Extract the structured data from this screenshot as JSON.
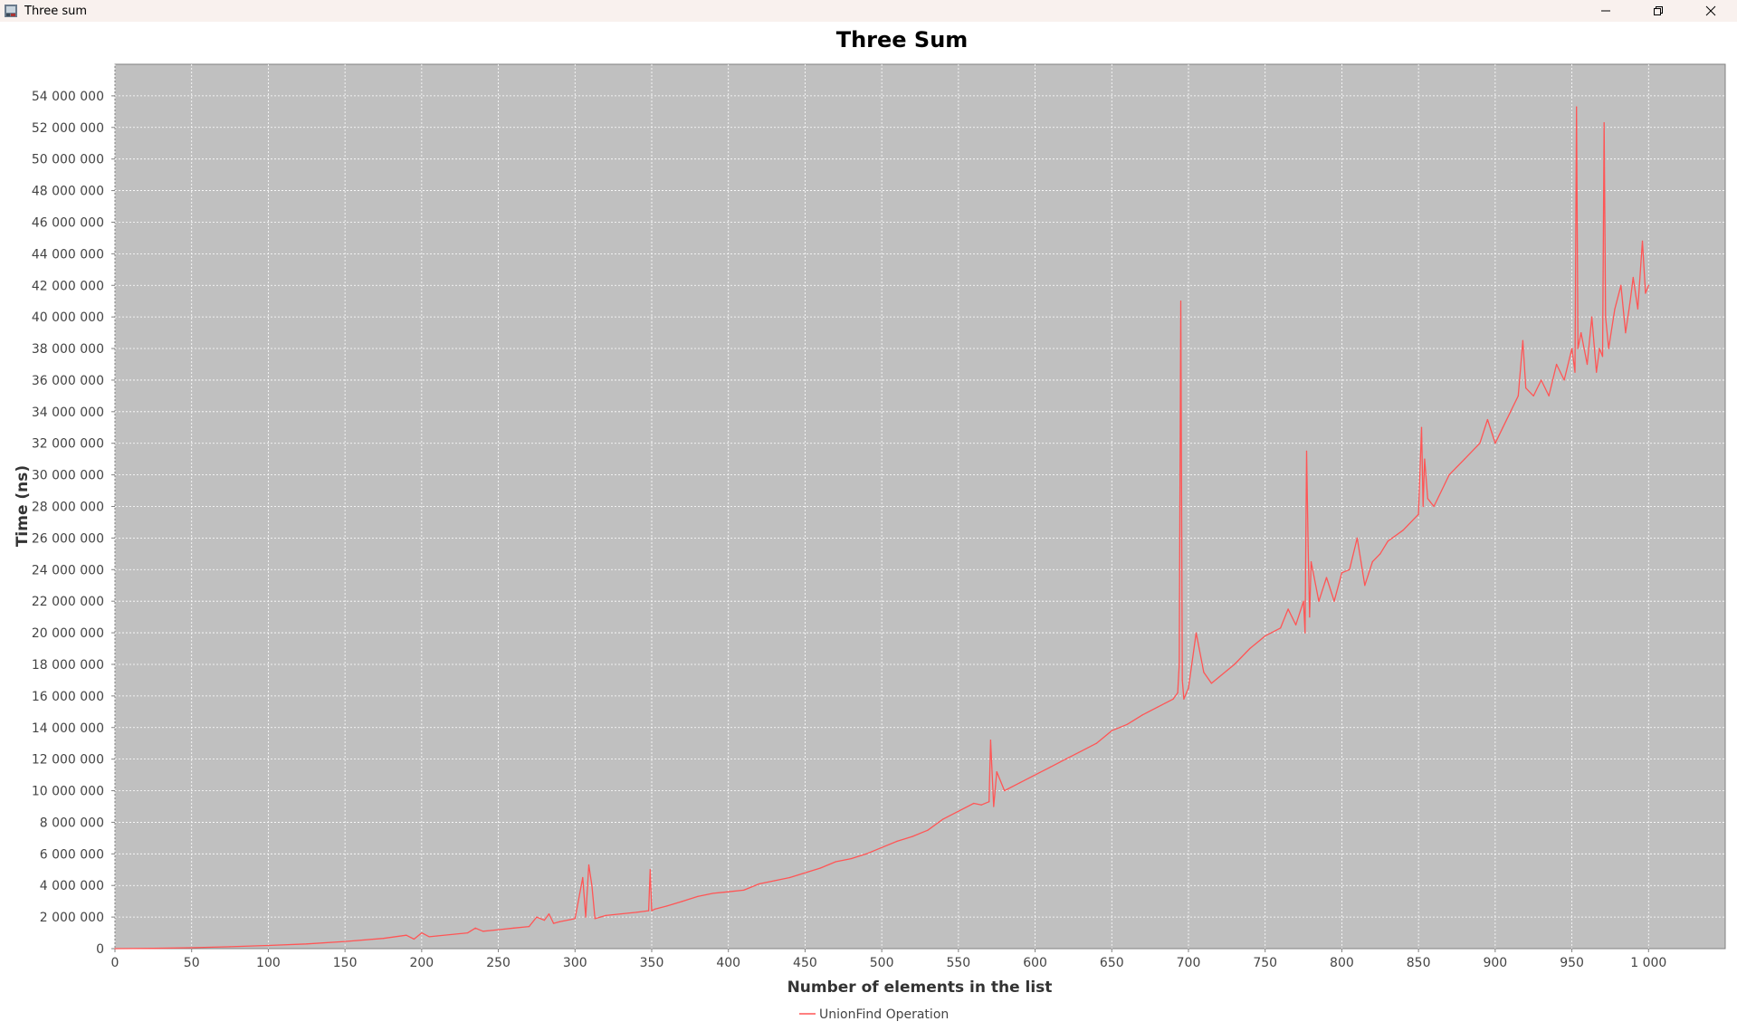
{
  "window": {
    "title": "Three sum",
    "icons": [
      "app-icon",
      "minimize-icon",
      "restore-icon",
      "close-icon"
    ]
  },
  "colors": {
    "plot_background": "#c0c0c0",
    "grid": "#ffffff",
    "series": "#ff5555",
    "titlebar": "#f9f1ee"
  },
  "chart_data": {
    "type": "line",
    "title": "Three Sum",
    "xlabel": "Number of elements in the list",
    "ylabel": "Time (ns)",
    "xlim": [
      0,
      1050
    ],
    "ylim": [
      0,
      56000000
    ],
    "grid": true,
    "legend_position": "bottom-center",
    "x_ticks": [
      0,
      50,
      100,
      150,
      200,
      250,
      300,
      350,
      400,
      450,
      500,
      550,
      600,
      650,
      700,
      750,
      800,
      850,
      900,
      950,
      1000
    ],
    "x_tick_labels": [
      "0",
      "50",
      "100",
      "150",
      "200",
      "250",
      "300",
      "350",
      "400",
      "450",
      "500",
      "550",
      "600",
      "650",
      "700",
      "750",
      "800",
      "850",
      "900",
      "950",
      "1 000"
    ],
    "y_ticks": [
      0,
      2000000,
      4000000,
      6000000,
      8000000,
      10000000,
      12000000,
      14000000,
      16000000,
      18000000,
      20000000,
      22000000,
      24000000,
      26000000,
      28000000,
      30000000,
      32000000,
      34000000,
      36000000,
      38000000,
      40000000,
      42000000,
      44000000,
      46000000,
      48000000,
      50000000,
      52000000,
      54000000
    ],
    "y_tick_labels": [
      "0",
      "2 000 000",
      "4 000 000",
      "6 000 000",
      "8 000 000",
      "10 000 000",
      "12 000 000",
      "14 000 000",
      "16 000 000",
      "18 000 000",
      "20 000 000",
      "22 000 000",
      "24 000 000",
      "26 000 000",
      "28 000 000",
      "30 000 000",
      "32 000 000",
      "34 000 000",
      "36 000 000",
      "38 000 000",
      "40 000 000",
      "42 000 000",
      "44 000 000",
      "46 000 000",
      "48 000 000",
      "50 000 000",
      "52 000 000",
      "54 000 000"
    ],
    "series": [
      {
        "name": "UnionFind Operation",
        "color": "#ff5555",
        "x": [
          0,
          25,
          50,
          75,
          100,
          125,
          150,
          175,
          190,
          195,
          200,
          205,
          210,
          230,
          235,
          240,
          250,
          260,
          270,
          275,
          280,
          283,
          286,
          290,
          300,
          305,
          307,
          309,
          311,
          313,
          320,
          330,
          340,
          348,
          349,
          350,
          352,
          360,
          370,
          380,
          390,
          400,
          410,
          420,
          430,
          440,
          450,
          460,
          470,
          480,
          490,
          500,
          510,
          520,
          530,
          540,
          550,
          560,
          565,
          570,
          571,
          573,
          575,
          580,
          590,
          600,
          610,
          620,
          630,
          640,
          650,
          660,
          670,
          680,
          690,
          693,
          694,
          695,
          696,
          697,
          700,
          705,
          710,
          715,
          720,
          730,
          740,
          750,
          760,
          765,
          770,
          775,
          776,
          777,
          778,
          779,
          780,
          785,
          790,
          795,
          800,
          805,
          810,
          815,
          820,
          825,
          830,
          840,
          850,
          852,
          853,
          854,
          856,
          860,
          865,
          870,
          880,
          890,
          895,
          900,
          905,
          910,
          915,
          918,
          920,
          925,
          930,
          935,
          940,
          945,
          950,
          952,
          953,
          954,
          956,
          960,
          963,
          966,
          968,
          970,
          971,
          972,
          974,
          978,
          982,
          985,
          988,
          990,
          993,
          996,
          998,
          1000
        ],
        "y": [
          0,
          20000,
          60000,
          120000,
          200000,
          300000,
          450000,
          650000,
          850000,
          600000,
          1000000,
          750000,
          800000,
          1000000,
          1300000,
          1100000,
          1200000,
          1300000,
          1400000,
          2000000,
          1800000,
          2200000,
          1600000,
          1700000,
          1900000,
          4500000,
          2000000,
          5300000,
          4000000,
          1900000,
          2100000,
          2200000,
          2300000,
          2400000,
          5000000,
          2400000,
          2500000,
          2700000,
          3000000,
          3300000,
          3500000,
          3600000,
          3700000,
          4100000,
          4300000,
          4500000,
          4800000,
          5100000,
          5500000,
          5700000,
          6000000,
          6400000,
          6800000,
          7100000,
          7500000,
          8200000,
          8700000,
          9200000,
          9100000,
          9300000,
          13200000,
          9000000,
          11200000,
          10000000,
          10500000,
          11000000,
          11500000,
          12000000,
          12500000,
          13000000,
          13800000,
          14200000,
          14800000,
          15300000,
          15800000,
          16200000,
          18000000,
          41000000,
          17000000,
          15800000,
          16500000,
          20000000,
          17500000,
          16800000,
          17200000,
          18000000,
          19000000,
          19800000,
          20300000,
          21500000,
          20500000,
          22000000,
          20000000,
          31500000,
          25500000,
          21000000,
          24500000,
          22000000,
          23500000,
          22000000,
          23800000,
          24000000,
          26000000,
          23000000,
          24500000,
          25000000,
          25800000,
          26500000,
          27500000,
          33000000,
          28000000,
          31000000,
          28500000,
          28000000,
          29000000,
          30000000,
          31000000,
          32000000,
          33500000,
          32000000,
          33000000,
          34000000,
          35000000,
          38500000,
          35500000,
          35000000,
          36000000,
          35000000,
          37000000,
          36000000,
          38000000,
          36500000,
          53300000,
          38000000,
          39000000,
          37000000,
          40000000,
          36500000,
          38000000,
          37500000,
          52300000,
          40000000,
          38000000,
          40500000,
          42000000,
          39000000,
          41000000,
          42500000,
          40500000,
          44800000,
          41500000,
          42000000
        ]
      }
    ]
  }
}
